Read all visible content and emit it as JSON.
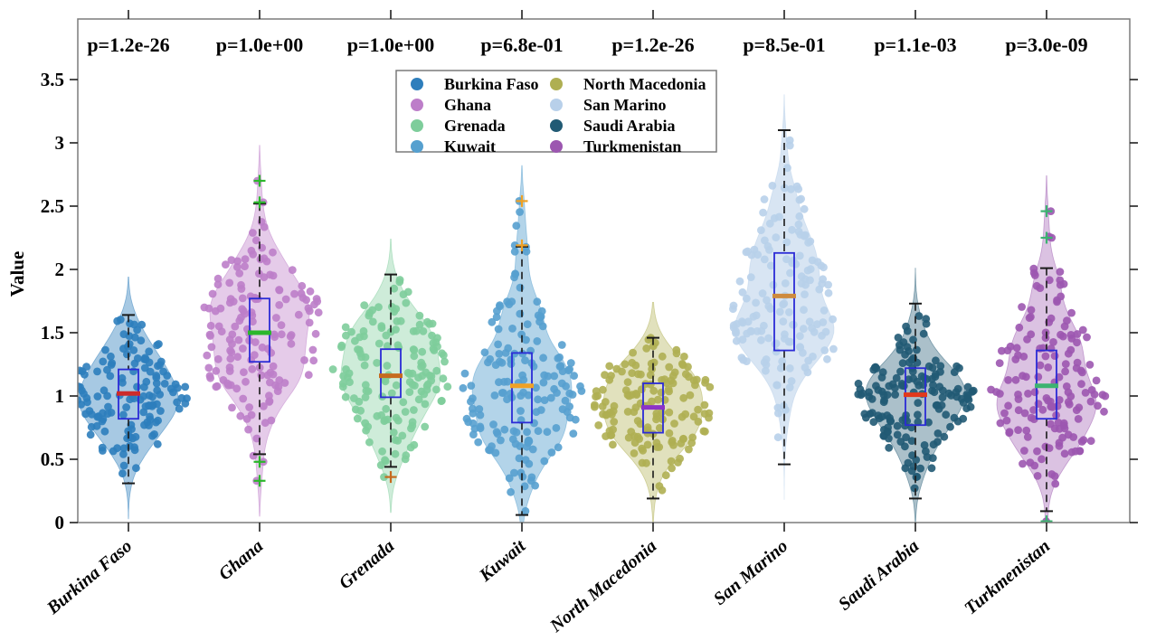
{
  "figure": {
    "ylabel": "Value",
    "background": "#ffffff",
    "frame_color": "#7b7b7b",
    "tick_color": "#1f1f1f",
    "text_color": "#000000",
    "box_color": "#2b2bd6",
    "whisker_color": "#1a1a1a"
  },
  "axes": {
    "y_ticks": [
      0,
      0.5,
      1,
      1.5,
      2,
      2.5,
      3,
      3.5
    ],
    "y_tick_labels": [
      "0",
      "0.5",
      "1",
      "1.5",
      "2",
      "2.5",
      "3",
      "3.5"
    ],
    "ylim": [
      0,
      3.98
    ],
    "grid": "off"
  },
  "legend": {
    "position": "top-center",
    "columns": 2,
    "entries": [
      "Burkina Faso",
      "Ghana",
      "Grenada",
      "Kuwait",
      "North Macedonia",
      "San Marino",
      "Saudi Arabia",
      "Turkmenistan"
    ]
  },
  "chart_data": {
    "type": "violin-scatter-box",
    "title": "",
    "xlabel": "",
    "ylabel": "Value",
    "categories": [
      "Burkina Faso",
      "Ghana",
      "Grenada",
      "Kuwait",
      "North Macedonia",
      "San Marino",
      "Saudi Arabia",
      "Turkmenistan"
    ],
    "p_values": [
      "p=1.2e-26",
      "p=1.0e+00",
      "p=1.0e+00",
      "p=6.8e-01",
      "p=1.2e-26",
      "p=8.5e-01",
      "p=1.1e-03",
      "p=3.0e-09"
    ],
    "series": [
      {
        "name": "Burkina Faso",
        "color": "#2E7EBC",
        "violin_alpha": 0.42,
        "n_points": 140,
        "mean": 1.02,
        "sd": 0.28,
        "skew": 1.05,
        "min": 0.31,
        "max": 1.66,
        "q1": 0.82,
        "median": 1.02,
        "q3": 1.21,
        "whisker_low": 0.31,
        "whisker_high": 1.64,
        "outliers": [],
        "median_color": "#CC2B2B"
      },
      {
        "name": "Ghana",
        "color": "#BD7EC9",
        "violin_alpha": 0.4,
        "n_points": 150,
        "mean": 1.5,
        "sd": 0.36,
        "skew": 1.1,
        "min": 0.33,
        "max": 2.7,
        "q1": 1.27,
        "median": 1.5,
        "q3": 1.77,
        "whisker_low": 0.54,
        "whisker_high": 2.52,
        "outliers": [
          2.7,
          2.53,
          0.48,
          0.33
        ],
        "median_color": "#2CB72C"
      },
      {
        "name": "Grenada",
        "color": "#7ECD9B",
        "violin_alpha": 0.38,
        "n_points": 150,
        "mean": 1.17,
        "sd": 0.28,
        "skew": 1.15,
        "min": 0.36,
        "max": 1.96,
        "q1": 0.99,
        "median": 1.16,
        "q3": 1.37,
        "whisker_low": 0.44,
        "whisker_high": 1.96,
        "outliers": [
          0.36
        ],
        "median_color": "#C66A1E"
      },
      {
        "name": "Kuwait",
        "color": "#56A0CF",
        "violin_alpha": 0.45,
        "n_points": 160,
        "mean": 1.06,
        "sd": 0.38,
        "skew": 1.25,
        "min": 0.05,
        "max": 2.54,
        "q1": 0.79,
        "median": 1.08,
        "q3": 1.34,
        "whisker_low": 0.06,
        "whisker_high": 2.18,
        "outliers": [
          2.54,
          2.19
        ],
        "median_color": "#EFA125"
      },
      {
        "name": "North Macedonia",
        "color": "#AFAF52",
        "violin_alpha": 0.38,
        "n_points": 150,
        "mean": 0.91,
        "sd": 0.26,
        "skew": 1.1,
        "min": 0.19,
        "max": 1.46,
        "q1": 0.71,
        "median": 0.91,
        "q3": 1.1,
        "whisker_low": 0.19,
        "whisker_high": 1.46,
        "outliers": [],
        "median_color": "#8C33C6"
      },
      {
        "name": "San Marino",
        "color": "#B8D0EA",
        "violin_alpha": 0.55,
        "n_points": 150,
        "mean": 1.76,
        "sd": 0.45,
        "skew": 1.15,
        "min": 0.46,
        "max": 3.1,
        "q1": 1.36,
        "median": 1.79,
        "q3": 2.13,
        "whisker_low": 0.46,
        "whisker_high": 3.1,
        "outliers": [],
        "median_color": "#CE8B3E"
      },
      {
        "name": "Saudi Arabia",
        "color": "#215A74",
        "violin_alpha": 0.38,
        "n_points": 160,
        "mean": 1.0,
        "sd": 0.3,
        "skew": 1.0,
        "min": 0.19,
        "max": 1.73,
        "q1": 0.77,
        "median": 1.01,
        "q3": 1.22,
        "whisker_low": 0.19,
        "whisker_high": 1.73,
        "outliers": [],
        "median_color": "#E2391B"
      },
      {
        "name": "Turkmenistan",
        "color": "#9C57B0",
        "violin_alpha": 0.36,
        "n_points": 150,
        "mean": 1.08,
        "sd": 0.36,
        "skew": 1.3,
        "min": 0.01,
        "max": 2.46,
        "q1": 0.82,
        "median": 1.08,
        "q3": 1.36,
        "whisker_low": 0.09,
        "whisker_high": 2.01,
        "outliers": [
          2.46,
          2.25,
          0.01
        ],
        "median_color": "#3CB371"
      }
    ]
  }
}
